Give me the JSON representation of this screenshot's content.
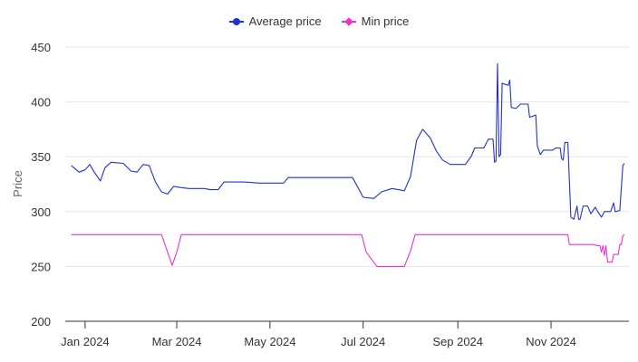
{
  "legend": {
    "items": [
      {
        "label": "Average price",
        "color": "#2233cc",
        "icon": "circle-marker-icon"
      },
      {
        "label": "Min price",
        "color": "#ee33cc",
        "icon": "diamond-marker-icon"
      }
    ]
  },
  "chart_data": {
    "type": "line",
    "xlabel": "",
    "ylabel": "Price",
    "xlim": [
      "2023-12-19",
      "2024-12-22"
    ],
    "ylim": [
      200,
      450
    ],
    "yticks": [
      200,
      250,
      300,
      350,
      400,
      450
    ],
    "xticks": [
      {
        "date": "2024-01-01",
        "label": "Jan 2024"
      },
      {
        "date": "2024-03-01",
        "label": "Mar 2024"
      },
      {
        "date": "2024-05-01",
        "label": "May 2024"
      },
      {
        "date": "2024-07-01",
        "label": "Jul 2024"
      },
      {
        "date": "2024-09-01",
        "label": "Sep 2024"
      },
      {
        "date": "2024-11-01",
        "label": "Nov 2024"
      }
    ],
    "grid": true,
    "legend_position": "top-center",
    "series": [
      {
        "name": "Average price",
        "color": "#2233cc",
        "points": [
          [
            "2023-12-23",
            342
          ],
          [
            "2023-12-28",
            336
          ],
          [
            "2024-01-01",
            338
          ],
          [
            "2024-01-04",
            343
          ],
          [
            "2024-01-07",
            336
          ],
          [
            "2024-01-11",
            328
          ],
          [
            "2024-01-14",
            340
          ],
          [
            "2024-01-18",
            345
          ],
          [
            "2024-01-26",
            344
          ],
          [
            "2024-01-31",
            337
          ],
          [
            "2024-02-04",
            336
          ],
          [
            "2024-02-08",
            343
          ],
          [
            "2024-02-12",
            342
          ],
          [
            "2024-02-16",
            327
          ],
          [
            "2024-02-20",
            318
          ],
          [
            "2024-02-24",
            316
          ],
          [
            "2024-02-28",
            323
          ],
          [
            "2024-03-03",
            322
          ],
          [
            "2024-03-09",
            321
          ],
          [
            "2024-03-19",
            321
          ],
          [
            "2024-03-23",
            320
          ],
          [
            "2024-03-28",
            320
          ],
          [
            "2024-04-01",
            327
          ],
          [
            "2024-04-14",
            327
          ],
          [
            "2024-04-24",
            326
          ],
          [
            "2024-05-03",
            326
          ],
          [
            "2024-05-10",
            326
          ],
          [
            "2024-05-13",
            331
          ],
          [
            "2024-06-24",
            331
          ],
          [
            "2024-06-28",
            321
          ],
          [
            "2024-07-01",
            313
          ],
          [
            "2024-07-08",
            312
          ],
          [
            "2024-07-13",
            318
          ],
          [
            "2024-07-20",
            321
          ],
          [
            "2024-07-28",
            319
          ],
          [
            "2024-08-01",
            332
          ],
          [
            "2024-08-05",
            365
          ],
          [
            "2024-08-09",
            375
          ],
          [
            "2024-08-14",
            367
          ],
          [
            "2024-08-18",
            355
          ],
          [
            "2024-08-22",
            347
          ],
          [
            "2024-08-27",
            343
          ],
          [
            "2024-09-02",
            343
          ],
          [
            "2024-09-06",
            343
          ],
          [
            "2024-09-10",
            351
          ],
          [
            "2024-09-12",
            358
          ],
          [
            "2024-09-18",
            358
          ],
          [
            "2024-09-21",
            366
          ],
          [
            "2024-09-24",
            366
          ],
          [
            "2024-09-25",
            345
          ],
          [
            "2024-09-26",
            346
          ],
          [
            "2024-09-27",
            435
          ],
          [
            "2024-09-28",
            350
          ],
          [
            "2024-09-29",
            352
          ],
          [
            "2024-09-30",
            417
          ],
          [
            "2024-10-02",
            416
          ],
          [
            "2024-10-04",
            415
          ],
          [
            "2024-10-05",
            420
          ],
          [
            "2024-10-06",
            395
          ],
          [
            "2024-10-09",
            394
          ],
          [
            "2024-10-12",
            398
          ],
          [
            "2024-10-17",
            398
          ],
          [
            "2024-10-18",
            386
          ],
          [
            "2024-10-22",
            388
          ],
          [
            "2024-10-23",
            360
          ],
          [
            "2024-10-25",
            352
          ],
          [
            "2024-10-27",
            356
          ],
          [
            "2024-11-02",
            356
          ],
          [
            "2024-11-04",
            358
          ],
          [
            "2024-11-07",
            358
          ],
          [
            "2024-11-08",
            348
          ],
          [
            "2024-11-09",
            347
          ],
          [
            "2024-11-10",
            363
          ],
          [
            "2024-11-12",
            363
          ],
          [
            "2024-11-14",
            295
          ],
          [
            "2024-11-16",
            293
          ],
          [
            "2024-11-18",
            305
          ],
          [
            "2024-11-19",
            293
          ],
          [
            "2024-11-20",
            293
          ],
          [
            "2024-11-22",
            305
          ],
          [
            "2024-11-25",
            305
          ],
          [
            "2024-11-27",
            298
          ],
          [
            "2024-11-30",
            304
          ],
          [
            "2024-12-02",
            299
          ],
          [
            "2024-12-04",
            295
          ],
          [
            "2024-12-06",
            300
          ],
          [
            "2024-12-10",
            300
          ],
          [
            "2024-12-12",
            308
          ],
          [
            "2024-12-13",
            300
          ],
          [
            "2024-12-16",
            301
          ],
          [
            "2024-12-18",
            342
          ],
          [
            "2024-12-19",
            344
          ]
        ]
      },
      {
        "name": "Min price",
        "color": "#ee33cc",
        "points": [
          [
            "2023-12-23",
            279
          ],
          [
            "2024-02-20",
            279
          ],
          [
            "2024-02-24",
            263
          ],
          [
            "2024-02-27",
            251
          ],
          [
            "2024-03-01",
            263
          ],
          [
            "2024-03-04",
            279
          ],
          [
            "2024-06-30",
            279
          ],
          [
            "2024-07-03",
            263
          ],
          [
            "2024-07-10",
            250
          ],
          [
            "2024-07-28",
            250
          ],
          [
            "2024-08-01",
            264
          ],
          [
            "2024-08-04",
            279
          ],
          [
            "2024-11-12",
            279
          ],
          [
            "2024-11-13",
            270
          ],
          [
            "2024-11-29",
            270
          ],
          [
            "2024-12-01",
            269
          ],
          [
            "2024-12-03",
            269
          ],
          [
            "2024-12-04",
            263
          ],
          [
            "2024-12-05",
            269
          ],
          [
            "2024-12-06",
            260
          ],
          [
            "2024-12-07",
            269
          ],
          [
            "2024-12-08",
            254
          ],
          [
            "2024-12-11",
            254
          ],
          [
            "2024-12-12",
            261
          ],
          [
            "2024-12-15",
            261
          ],
          [
            "2024-12-16",
            270
          ],
          [
            "2024-12-17",
            270
          ],
          [
            "2024-12-18",
            278
          ],
          [
            "2024-12-19",
            279
          ]
        ]
      }
    ]
  }
}
